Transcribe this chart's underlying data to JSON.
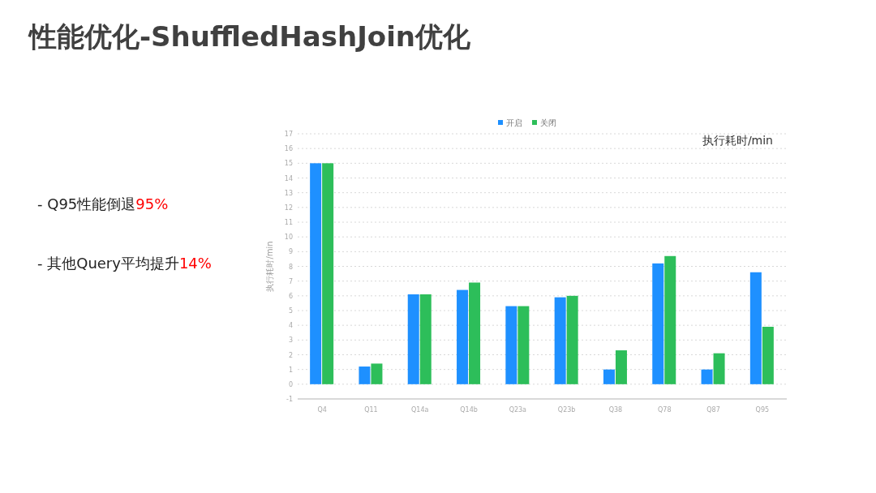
{
  "chart_data": {
    "type": "bar",
    "title": "性能优化-ShuffledHashJoin优化",
    "ylabel": "执行耗时/min",
    "categories": [
      "Q4",
      "Q11",
      "Q14a",
      "Q14b",
      "Q23a",
      "Q23b",
      "Q38",
      "Q78",
      "Q87",
      "Q95"
    ],
    "series": [
      {
        "name": "开启",
        "color": "#1e90ff",
        "values": [
          15,
          1.2,
          6.1,
          6.4,
          5.3,
          5.9,
          1.0,
          8.2,
          1.0,
          7.6
        ]
      },
      {
        "name": "关闭",
        "color": "#2dbe5a",
        "values": [
          15,
          1.4,
          6.1,
          6.9,
          5.3,
          6.0,
          2.3,
          8.7,
          2.1,
          3.9
        ]
      }
    ],
    "ylim": [
      -1,
      17
    ],
    "yticks": [
      -1,
      0,
      1,
      2,
      3,
      4,
      5,
      6,
      7,
      8,
      9,
      10,
      11,
      12,
      13,
      14,
      15,
      16,
      17
    ],
    "grid": "y",
    "legend": "top",
    "annotations": [
      "执行耗时/min",
      "- Q95性能倒退",
      "95%",
      "- 其他Query平均提升",
      "14%"
    ]
  }
}
